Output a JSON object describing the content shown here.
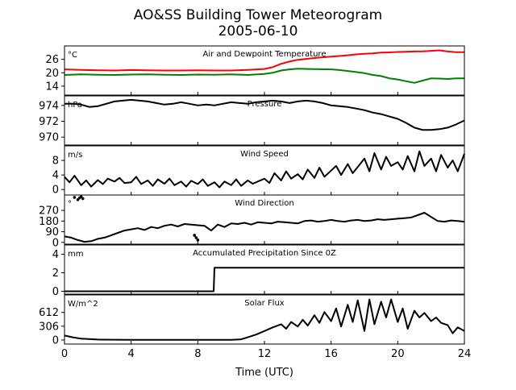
{
  "title": "AO&SS Building Tower Meteorogram",
  "subtitle": "2005-06-10",
  "xlabel": "Time (UTC)",
  "colors": {
    "temperature": "#ff0000",
    "dewpoint": "#008000",
    "default": "#000000"
  },
  "chart_data": {
    "type": "line",
    "x_range": [
      0,
      24
    ],
    "x_ticks": [
      0,
      4,
      8,
      12,
      16,
      20,
      24
    ],
    "x_tick_labels": [
      "0",
      "4",
      "8",
      "12",
      "16",
      "20",
      "24"
    ],
    "panels": [
      {
        "title": "Air and Dewpoint Temperature",
        "units": "°C",
        "ylim": [
          10,
          32
        ],
        "y_ticks": [
          14,
          20,
          26
        ],
        "y_tick_labels": [
          "14",
          "20",
          "26"
        ],
        "series": [
          {
            "color": "#ff0000",
            "x": [
              0,
              1,
              2,
              3,
              4,
              5,
              6,
              7,
              8,
              9,
              10,
              11,
              12,
              12.5,
              13,
              13.5,
              14,
              14.5,
              15,
              15.5,
              16,
              16.5,
              17,
              17.5,
              18,
              18.5,
              19,
              19.5,
              20,
              20.5,
              21,
              21.5,
              22,
              22.5,
              23,
              23.5,
              24
            ],
            "y": [
              21.5,
              21.3,
              21.1,
              21,
              21.2,
              21.1,
              21,
              21,
              21.1,
              21,
              21,
              21.3,
              21.7,
              22.5,
              24,
              25,
              25.8,
              26.2,
              26.6,
              26.9,
              27.2,
              27.5,
              27.8,
              28.2,
              28.5,
              28.7,
              29,
              29.1,
              29.3,
              29.4,
              29.5,
              29.6,
              29.8,
              30,
              29.5,
              29.2,
              29.2
            ]
          },
          {
            "color": "#008000",
            "x": [
              0,
              1,
              2,
              3,
              4,
              5,
              6,
              7,
              8,
              9,
              10,
              11,
              12,
              12.5,
              13,
              13.5,
              14,
              15,
              16,
              16.5,
              17,
              17.5,
              18,
              18.5,
              19,
              19.5,
              20,
              20.5,
              21,
              21.5,
              22,
              22.5,
              23,
              23.5,
              24
            ],
            "y": [
              19,
              19.3,
              19.1,
              19,
              19.2,
              19.3,
              19.1,
              19,
              19.2,
              19.1,
              19.3,
              19,
              19.5,
              20,
              21,
              21.5,
              21.8,
              21.6,
              21.5,
              21.2,
              20.8,
              20.3,
              19.8,
              19,
              18.5,
              17.5,
              17,
              16.2,
              15.5,
              16.5,
              17.5,
              17.4,
              17.2,
              17.5,
              17.5
            ]
          }
        ]
      },
      {
        "title": "Pressure",
        "units": "hPa",
        "ylim": [
          969,
          975.2
        ],
        "y_ticks": [
          970,
          972,
          974
        ],
        "y_tick_labels": [
          "970",
          "972",
          "974"
        ],
        "series": [
          {
            "color": "#000000",
            "x": [
              0,
              0.5,
              1,
              1.5,
              2,
              2.5,
              3,
              3.5,
              4,
              4.5,
              5,
              5.5,
              6,
              6.5,
              7,
              7.5,
              8,
              8.5,
              9,
              9.5,
              10,
              10.5,
              11,
              11.5,
              12,
              12.5,
              13,
              13.5,
              14,
              14.5,
              15,
              15.5,
              16,
              16.5,
              17,
              17.5,
              18,
              18.5,
              19,
              19.5,
              20,
              20.5,
              21,
              21.5,
              22,
              22.5,
              23,
              23.5,
              24
            ],
            "y": [
              974.2,
              974.2,
              974.1,
              973.8,
              973.9,
              974.2,
              974.5,
              974.6,
              974.7,
              974.6,
              974.5,
              974.3,
              974.1,
              974.2,
              974.4,
              974.2,
              974.0,
              974.1,
              974.0,
              974.2,
              974.4,
              974.3,
              974.2,
              974.4,
              974.5,
              974.6,
              974.5,
              974.3,
              974.5,
              974.6,
              974.5,
              974.3,
              974.0,
              973.9,
              973.8,
              973.6,
              973.4,
              973.1,
              972.9,
              972.6,
              972.3,
              971.8,
              971.2,
              970.9,
              970.9,
              971.0,
              971.2,
              971.6,
              972.1
            ]
          }
        ]
      },
      {
        "title": "Wind Speed",
        "units": "m/s",
        "ylim": [
          -1.5,
          12
        ],
        "y_ticks": [
          0,
          4,
          8
        ],
        "y_tick_labels": [
          "0",
          "4",
          "8"
        ],
        "series": [
          {
            "color": "#000000",
            "x": [
              0,
              0.3,
              0.6,
              1,
              1.3,
              1.6,
              2,
              2.3,
              2.6,
              3,
              3.3,
              3.6,
              4,
              4.3,
              4.6,
              5,
              5.3,
              5.6,
              6,
              6.3,
              6.6,
              7,
              7.3,
              7.6,
              8,
              8.3,
              8.6,
              9,
              9.3,
              9.6,
              10,
              10.3,
              10.6,
              11,
              11.3,
              11.6,
              12,
              12.3,
              12.6,
              13,
              13.3,
              13.6,
              14,
              14.3,
              14.6,
              15,
              15.3,
              15.6,
              16,
              16.3,
              16.6,
              17,
              17.3,
              17.6,
              18,
              18.3,
              18.6,
              19,
              19.3,
              19.6,
              20,
              20.3,
              20.6,
              21,
              21.3,
              21.6,
              22,
              22.3,
              22.6,
              23,
              23.3,
              23.6,
              24
            ],
            "y": [
              3.5,
              2.0,
              3.8,
              1.2,
              2.5,
              0.8,
              2.6,
              1.5,
              3.0,
              2.2,
              3.2,
              1.8,
              2.0,
              3.5,
              1.5,
              2.5,
              1.0,
              2.8,
              1.6,
              3.0,
              1.2,
              2.2,
              0.8,
              2.4,
              1.5,
              2.8,
              1.0,
              2.0,
              0.6,
              2.2,
              1.2,
              2.8,
              1.0,
              2.5,
              1.6,
              2.2,
              3.0,
              1.8,
              4.5,
              2.5,
              5.0,
              3.0,
              4.2,
              2.8,
              5.5,
              3.2,
              6.0,
              3.5,
              5.2,
              6.5,
              4.0,
              7.0,
              4.5,
              6.2,
              8.5,
              5.0,
              10.0,
              5.5,
              9.0,
              6.5,
              7.5,
              5.5,
              9.2,
              5.0,
              10.5,
              6.5,
              8.5,
              5.0,
              9.5,
              6.0,
              8.0,
              5.0,
              9.8
            ]
          }
        ]
      },
      {
        "title": "Wind Direction",
        "units": "°",
        "ylim": [
          -15,
          400
        ],
        "y_ticks": [
          0,
          90,
          180,
          270
        ],
        "y_tick_labels": [
          "0",
          "90",
          "180",
          "270"
        ],
        "series": [
          {
            "color": "#000000",
            "x": [
              0,
              0.4,
              0.8,
              1.2,
              1.6,
              2,
              2.4,
              2.8,
              3.2,
              3.6,
              4,
              4.4,
              4.8,
              5.2,
              5.6,
              6,
              6.4,
              6.8,
              7.2,
              7.6,
              8,
              8.4,
              8.8,
              9.2,
              9.6,
              10,
              10.4,
              10.8,
              11.2,
              11.6,
              12,
              12.4,
              12.8,
              13.2,
              13.6,
              14,
              14.4,
              14.8,
              15.2,
              15.6,
              16,
              16.4,
              16.8,
              17.2,
              17.6,
              18,
              18.4,
              18.8,
              19.2,
              19.6,
              20,
              20.4,
              20.8,
              21.2,
              21.6,
              22,
              22.4,
              22.8,
              23.2,
              23.6,
              24
            ],
            "y": [
              50,
              40,
              20,
              5,
              10,
              30,
              40,
              60,
              80,
              100,
              110,
              120,
              105,
              130,
              120,
              140,
              150,
              135,
              155,
              150,
              145,
              140,
              100,
              150,
              130,
              160,
              155,
              165,
              150,
              170,
              165,
              160,
              175,
              170,
              165,
              160,
              180,
              185,
              175,
              180,
              190,
              180,
              175,
              185,
              190,
              180,
              185,
              195,
              190,
              195,
              200,
              205,
              210,
              230,
              250,
              215,
              180,
              175,
              185,
              180,
              175
            ]
          }
        ],
        "scatter_points": {
          "x": [
            0.6,
            0.8,
            0.9,
            1.0,
            1.1,
            7.8,
            7.9,
            8.0
          ],
          "y": [
            380,
            360,
            375,
            385,
            370,
            60,
            40,
            20
          ]
        }
      },
      {
        "title": "Accumulated Precipitation Since 0Z",
        "units": "mm",
        "ylim": [
          -0.3,
          5
        ],
        "y_ticks": [
          0,
          2,
          4
        ],
        "y_tick_labels": [
          "0",
          "2",
          "4"
        ],
        "series": [
          {
            "color": "#000000",
            "x": [
              0,
              8.95,
              9.0,
              24
            ],
            "y": [
              0,
              0,
              2.54,
              2.54
            ]
          }
        ]
      },
      {
        "title": "Solar Flux",
        "units": "W/m^2",
        "ylim": [
          -90,
          1000
        ],
        "y_ticks": [
          0,
          306,
          612
        ],
        "y_tick_labels": [
          "0",
          "306",
          "612"
        ],
        "series": [
          {
            "color": "#000000",
            "x": [
              0,
              0.5,
              1,
              2,
              4,
              6,
              8,
              10,
              10.6,
              11,
              11.5,
              12,
              12.5,
              13,
              13.3,
              13.6,
              14,
              14.3,
              14.6,
              15,
              15.3,
              15.6,
              16,
              16.3,
              16.6,
              17,
              17.3,
              17.6,
              18,
              18.3,
              18.6,
              19,
              19.3,
              19.6,
              20,
              20.3,
              20.6,
              21,
              21.3,
              21.6,
              22,
              22.3,
              22.6,
              23,
              23.3,
              23.6,
              24
            ],
            "y": [
              100,
              60,
              30,
              10,
              5,
              5,
              5,
              5,
              15,
              60,
              120,
              200,
              280,
              350,
              250,
              400,
              300,
              450,
              320,
              550,
              380,
              620,
              420,
              700,
              300,
              780,
              400,
              880,
              200,
              900,
              350,
              850,
              500,
              900,
              400,
              700,
              250,
              650,
              500,
              600,
              420,
              500,
              380,
              330,
              150,
              280,
              200
            ]
          }
        ]
      }
    ]
  }
}
